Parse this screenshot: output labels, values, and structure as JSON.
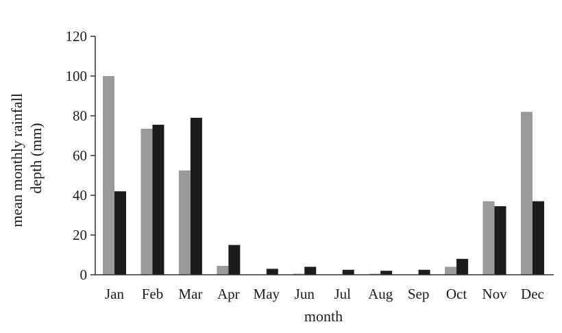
{
  "chart_data": {
    "type": "bar",
    "title": "",
    "xlabel": "month",
    "ylabel": [
      "mean monthly rainfall",
      "depth (mm)"
    ],
    "categories": [
      "Jan",
      "Feb",
      "Mar",
      "Apr",
      "May",
      "Jun",
      "Jul",
      "Aug",
      "Sep",
      "Oct",
      "Nov",
      "Dec"
    ],
    "series": [
      {
        "color": "#9a9a9a",
        "values": [
          100,
          73.5,
          52.5,
          4.5,
          0,
          0.5,
          0,
          0.5,
          0,
          4,
          37,
          82
        ]
      },
      {
        "color": "#1c1c1c",
        "values": [
          42,
          75.5,
          79,
          15,
          3,
          4,
          2.5,
          2,
          2.5,
          8,
          34.5,
          37
        ]
      }
    ],
    "yticks": [
      0,
      20,
      40,
      60,
      80,
      100,
      120
    ],
    "ylim": [
      0,
      120
    ],
    "grid": false,
    "legend": "none"
  }
}
